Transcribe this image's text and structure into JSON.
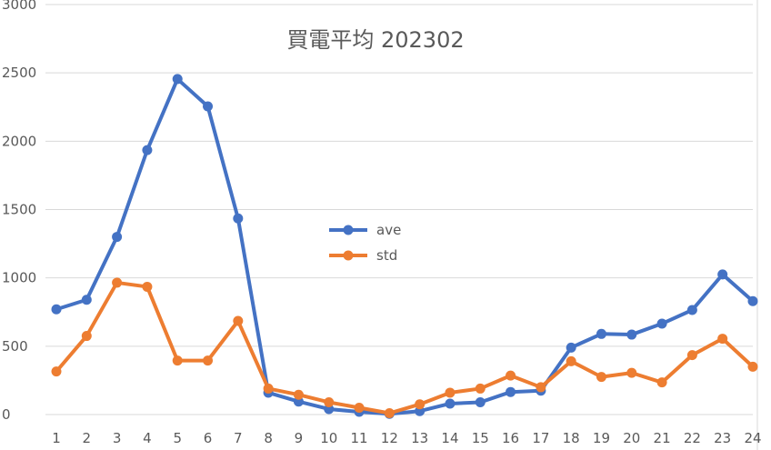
{
  "chart_data": {
    "type": "line",
    "title": "買電平均 202302",
    "xlabel": "",
    "ylabel": "",
    "x": [
      1,
      2,
      3,
      4,
      5,
      6,
      7,
      8,
      9,
      10,
      11,
      12,
      13,
      14,
      15,
      16,
      17,
      18,
      19,
      20,
      21,
      22,
      23,
      24
    ],
    "x_tick_labels": [
      "1",
      "2",
      "3",
      "4",
      "5",
      "6",
      "7",
      "8",
      "9",
      "10",
      "11",
      "12",
      "13",
      "14",
      "15",
      "16",
      "17",
      "18",
      "19",
      "20",
      "21",
      "22",
      "23",
      "24"
    ],
    "ylim": [
      0,
      3000
    ],
    "y_ticks": [
      0,
      500,
      1000,
      1500,
      2000,
      2500,
      3000
    ],
    "y_tick_labels": [
      "0",
      "500",
      "1000",
      "1500",
      "2000",
      "2500",
      "3000"
    ],
    "grid": true,
    "legend_position": "center",
    "series": [
      {
        "name": "ave",
        "color": "#4472c4",
        "values": [
          770,
          840,
          1300,
          1935,
          2455,
          2255,
          1435,
          160,
          95,
          40,
          20,
          5,
          25,
          80,
          90,
          165,
          175,
          490,
          590,
          585,
          665,
          765,
          1025,
          830
        ]
      },
      {
        "name": "std",
        "color": "#ed7d31",
        "values": [
          315,
          575,
          965,
          935,
          395,
          395,
          685,
          190,
          145,
          90,
          50,
          10,
          75,
          160,
          190,
          285,
          200,
          390,
          275,
          305,
          235,
          435,
          555,
          350
        ]
      }
    ]
  }
}
